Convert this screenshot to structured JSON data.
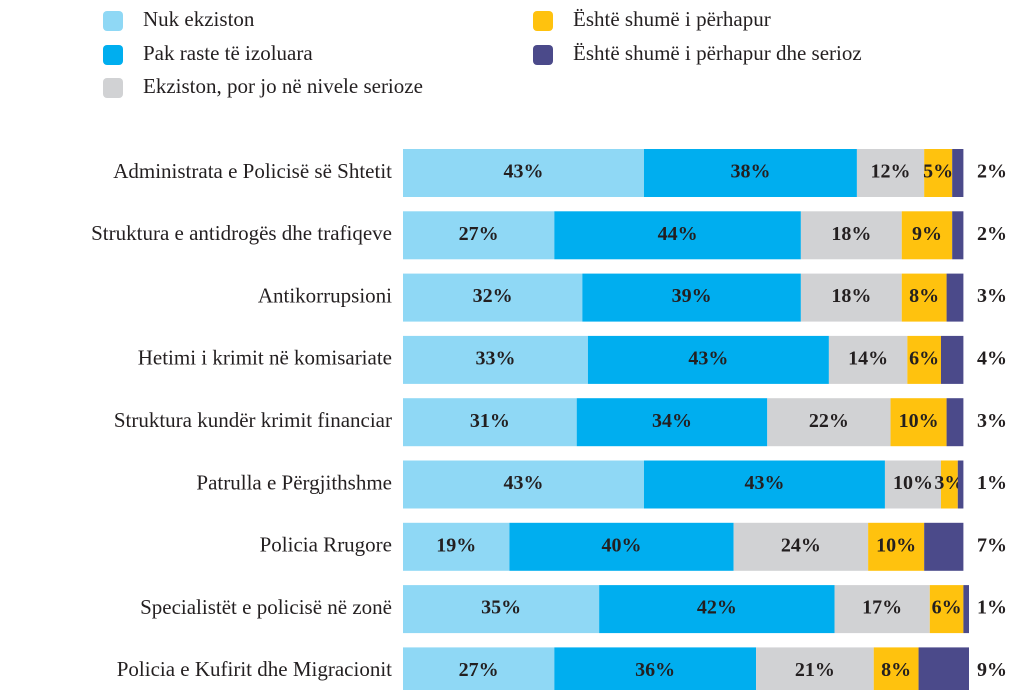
{
  "chart_data": {
    "type": "stacked-bar-horizontal",
    "categories": [
      "Administrata e Policisë së Shtetit",
      "Struktura e antidrogës dhe trafiqeve",
      "Antikorrupsioni",
      "Hetimi i krimit në komisariate",
      "Struktura kundër krimit financiar",
      "Patrulla e Përgjithshme",
      "Policia Rrugore",
      "Specialistët e policisë në zonë",
      "Policia e Kufirit dhe Migracionit"
    ],
    "series": [
      {
        "name": "Nuk ekziston",
        "color": "#8fd8f5",
        "values": [
          43,
          27,
          32,
          33,
          31,
          43,
          19,
          35,
          27
        ],
        "value_labels": [
          "43%",
          "27%",
          "32%",
          "33%",
          "31%",
          "43%",
          "19%",
          "35%",
          "27%"
        ]
      },
      {
        "name": "Pak raste të izoluara",
        "color": "#00aeef",
        "values": [
          38,
          44,
          39,
          43,
          34,
          43,
          40,
          42,
          36
        ],
        "value_labels": [
          "38%",
          "44%",
          "39%",
          "43%",
          "34%",
          "43%",
          "40%",
          "42%",
          "36%"
        ]
      },
      {
        "name": "Ekziston, por jo në nivele serioze",
        "color": "#d1d2d4",
        "values": [
          12,
          18,
          18,
          14,
          22,
          10,
          24,
          17,
          21
        ],
        "value_labels": [
          "12%",
          "18%",
          "18%",
          "14%",
          "22%",
          "10%",
          "24%",
          "17%",
          "21%"
        ]
      },
      {
        "name": "Është shumë i përhapur",
        "color": "#ffc20e",
        "values": [
          5,
          9,
          8,
          6,
          10,
          3,
          10,
          6,
          8
        ],
        "value_labels": [
          "5%",
          "9%",
          "8%",
          "6%",
          "10%",
          "3%",
          "10%",
          "6%",
          "8%"
        ]
      },
      {
        "name": "Është shumë i përhapur dhe serioz",
        "color": "#4b4a8a",
        "values": [
          2,
          2,
          3,
          4,
          3,
          1,
          7,
          1,
          9
        ],
        "value_labels": [
          "2%",
          "2%",
          "3%",
          "4%",
          "3%",
          "1%",
          "7%",
          "1%",
          "9%"
        ]
      }
    ]
  }
}
